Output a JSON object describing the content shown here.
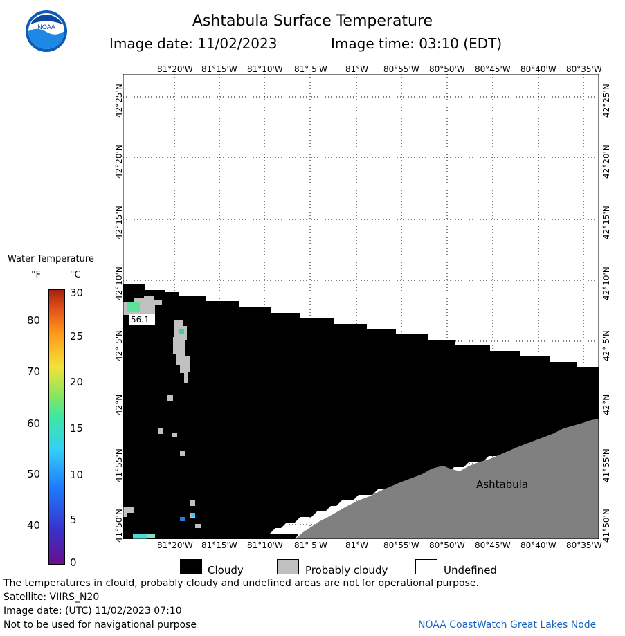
{
  "header": {
    "title": "Ashtabula Surface Temperature",
    "image_date": "Image date: 11/02/2023",
    "image_time": "Image time: 03:10 (EDT)",
    "logo_text": "NOAA"
  },
  "map": {
    "lon_labels": [
      "81°20'W",
      "81°15'W",
      "81°10'W",
      "81° 5'W",
      "81°W",
      "80°55'W",
      "80°50'W",
      "80°45'W",
      "80°40'W",
      "80°35'W"
    ],
    "lat_labels": [
      "42°25'N",
      "42°20'N",
      "42°15'N",
      "42°10'N",
      "42° 5'N",
      "42°N",
      "41°55'N",
      "41°50'N"
    ],
    "place_label": "Ashtabula",
    "temp_readout": "56.1"
  },
  "legend": {
    "title": "Water Temperature",
    "unit_f": "°F",
    "unit_c": "°C",
    "f_ticks": [
      "80",
      "70",
      "60",
      "50",
      "40"
    ],
    "c_ticks": [
      "30",
      "25",
      "20",
      "15",
      "10",
      "5",
      "0"
    ]
  },
  "key": {
    "cloudy": "Cloudy",
    "probably_cloudy": "Probably cloudy",
    "undefined": "Undefined",
    "colors": {
      "cloudy": "#000000",
      "probably_cloudy": "#c0c0c0",
      "undefined": "#ffffff",
      "land": "#808080"
    }
  },
  "footer": {
    "line1": "The temperatures in clould, probably cloudy and undefined areas are not for operational purpose.",
    "line2": "Satellite: VIIRS_N20",
    "line3": "Image date: (UTC) 11/02/2023  07:10",
    "line4": "Not to be used for navigational purpose",
    "credit": "NOAA CoastWatch Great Lakes Node"
  }
}
